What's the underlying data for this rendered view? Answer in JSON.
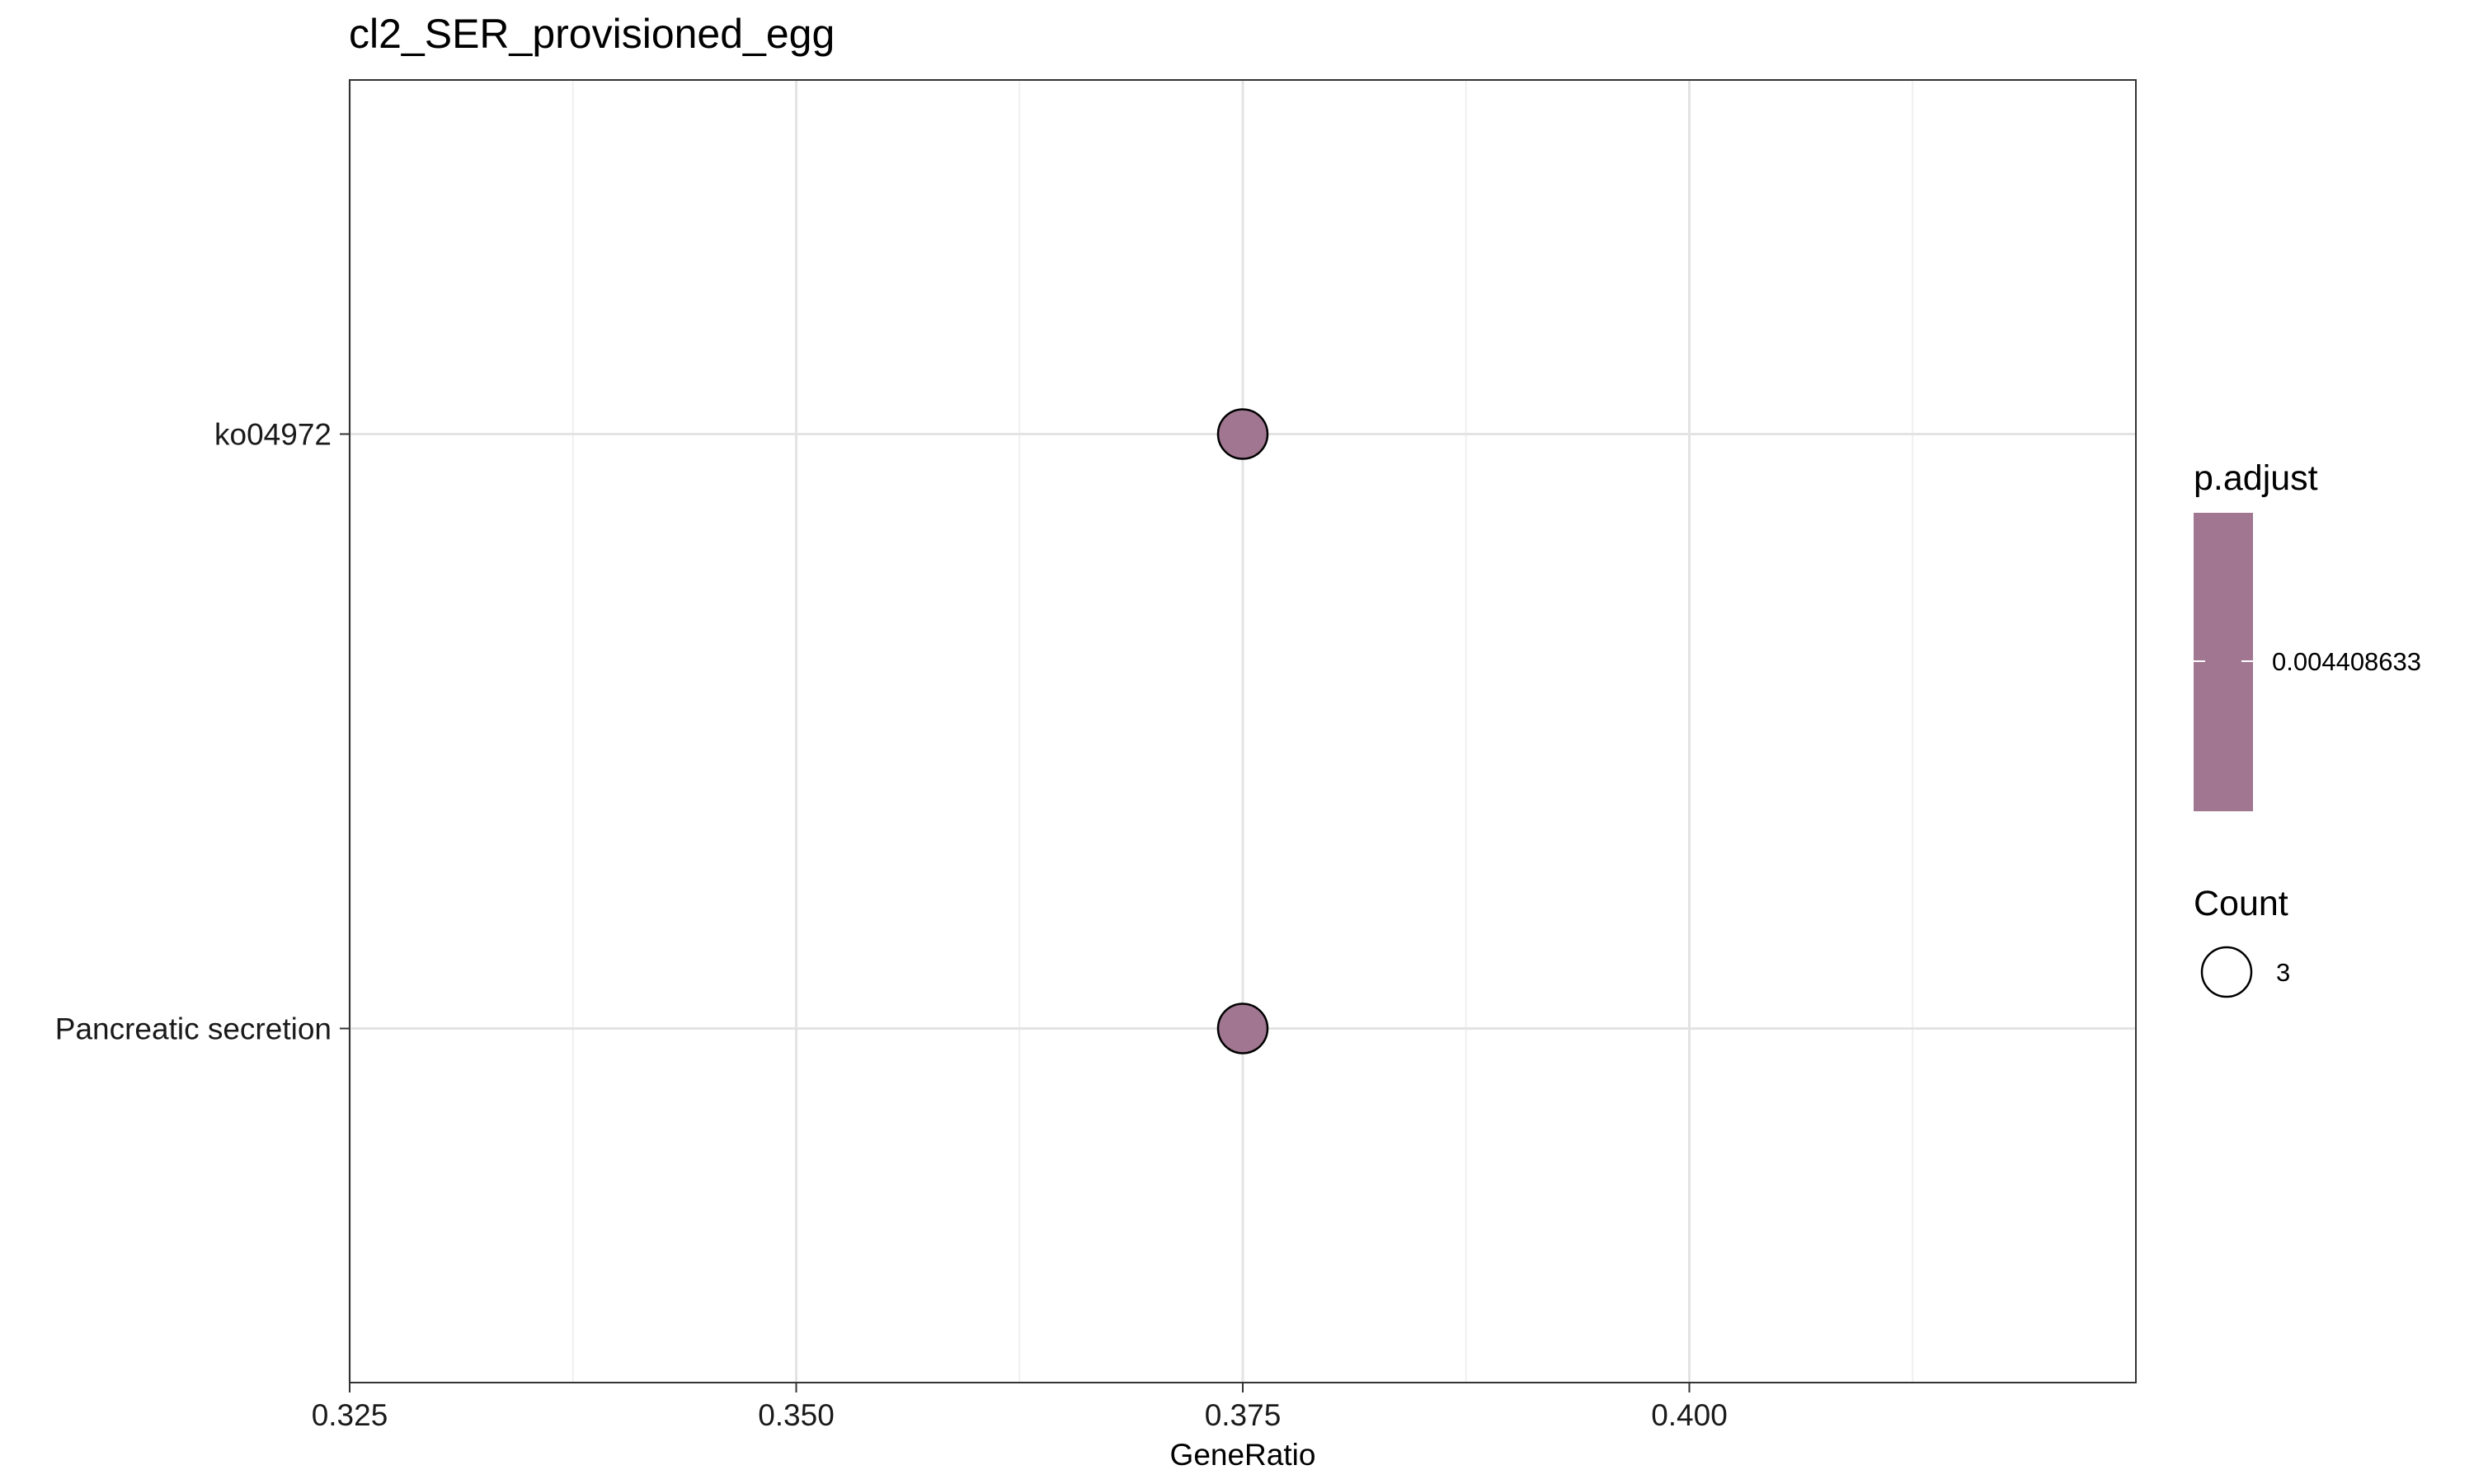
{
  "chart_data": {
    "type": "scatter",
    "title": "cl2_SER_provisioned_egg",
    "xlabel": "GeneRatio",
    "ylabel": "",
    "xlim": [
      0.325,
      0.425
    ],
    "x_ticks": [
      0.325,
      0.35,
      0.375,
      0.4
    ],
    "x_tick_labels": [
      "0.325",
      "0.350",
      "0.375",
      "0.400"
    ],
    "categories": [
      "ko04972",
      "Pancreatic secretion"
    ],
    "points": [
      {
        "label": "ko04972",
        "x": 0.375,
        "count": 3,
        "p_adjust": 0.004408633
      },
      {
        "label": "Pancreatic secretion",
        "x": 0.375,
        "count": 3,
        "p_adjust": 0.004408633
      }
    ],
    "grid": true,
    "point_color": "#a07690",
    "legend": {
      "placement": "right",
      "color_title": "p.adjust",
      "color_label": "0.004408633",
      "size_title": "Count",
      "size_label": "3"
    }
  }
}
